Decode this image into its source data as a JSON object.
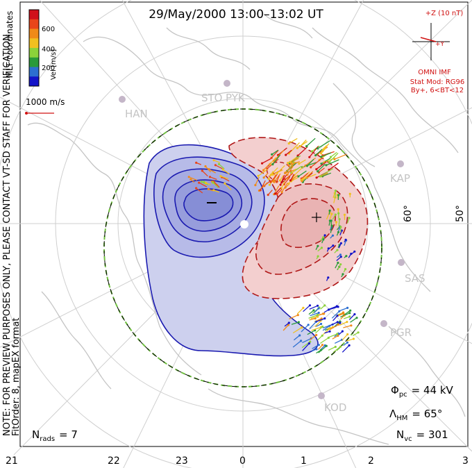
{
  "chart_data": {
    "type": "polar convection map",
    "title": "29/May/2000 13:00–13:02 UT",
    "coordinate_label": "MLT coordinates",
    "colorbar": {
      "label": "Vel [m/s]",
      "ticks": [
        "600",
        "400",
        "200"
      ],
      "colors": [
        "#d0101a",
        "#e8451a",
        "#f08a18",
        "#f0c020",
        "#8cd23a",
        "#2a9a3a",
        "#2d6fd0",
        "#1414c8"
      ]
    },
    "velocity_scale_label": "1000 m/s",
    "side_note": "NOTE: FOR PREVIEW PURPOSES ONLY, PLEASE CONTACT VT-SD STAFF FOR VERIFICATION.",
    "fit_note": "FitOrder: 8, mapEX format",
    "imf": {
      "plus_z": "+Z (10 nT)",
      "plus_y": "+Y",
      "source": "OMNI IMF",
      "stat_mod": "Stat Mod: RG96",
      "by_bt": "By+, 6<BT<12"
    },
    "station_labels": [
      "HAN",
      "STO",
      "PYK",
      "KAP",
      "SAS",
      "PGR",
      "KOD"
    ],
    "latitude_labels": [
      "60°",
      "50°"
    ],
    "mlt_ticks": [
      "21",
      "22",
      "23",
      "0",
      "1",
      "2",
      "3"
    ],
    "stats": {
      "phi_label": "Φ",
      "phi_sub": "pc",
      "phi_value": "= 44 kV",
      "lambda_label": "Λ",
      "lambda_sub": "HM",
      "lambda_value": "= 65°",
      "nvc_label": "N",
      "nvc_sub": "vc",
      "nvc_value": "= 301",
      "nrads_label": "N",
      "nrads_sub": "rads",
      "nrads_value": "= 7"
    },
    "colors": {
      "negative_cell": "#1a1ab0",
      "positive_cell": "#b01818",
      "negative_fill": "#c8cbee",
      "positive_fill": "#f3cccc",
      "boundary": "#70c040",
      "grid": "#c8c8c8",
      "land": "#c8c8c8",
      "annotation_red": "#d01010"
    }
  }
}
